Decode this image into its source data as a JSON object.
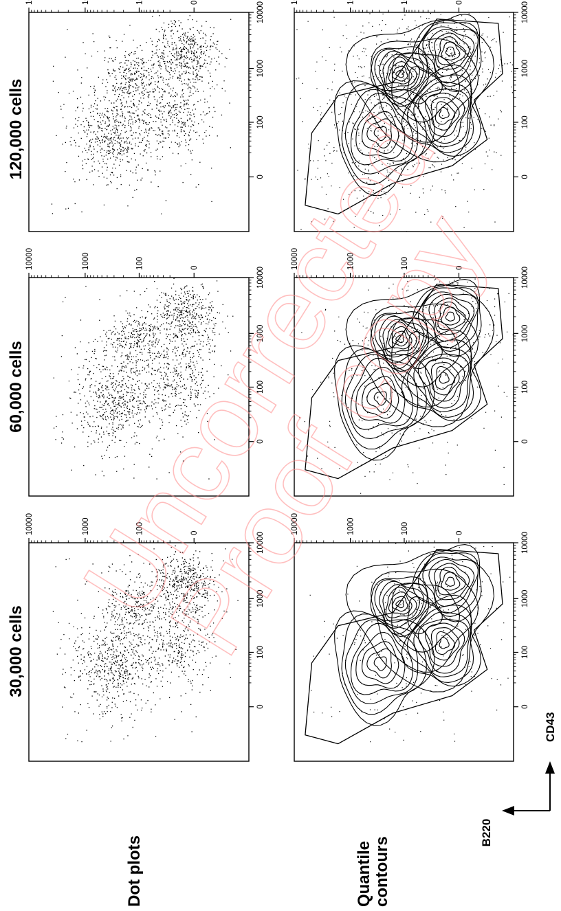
{
  "columns": [
    {
      "title": "30,000 cells",
      "cells": 30000
    },
    {
      "title": "60,000 cells",
      "cells": 60000
    },
    {
      "title": "120,000 cells",
      "cells": 120000
    }
  ],
  "rows": [
    {
      "label_lines": [
        "Dot plots"
      ],
      "kind": "dot"
    },
    {
      "label_lines": [
        "Quantile",
        "contours"
      ],
      "kind": "contour"
    }
  ],
  "axes": {
    "x_label": "CD43",
    "y_label": "B220",
    "tick_labels": [
      "0",
      "100",
      "1000",
      "10000"
    ]
  },
  "watermark": {
    "line1": "Uncorrected",
    "line2": "Proof copy"
  },
  "chart_data": {
    "type": "scatter",
    "scale": "logicle",
    "x_axis": "CD43",
    "y_axis": "B220",
    "xlim": [
      -100,
      10000
    ],
    "ylim": [
      -100,
      10000
    ],
    "ticks": [
      0,
      100,
      1000,
      10000
    ],
    "populations": [
      {
        "cd43": 60,
        "b220": 280,
        "rel_weight": 1.0
      },
      {
        "cd43": 800,
        "b220": 120,
        "rel_weight": 0.35
      },
      {
        "cd43": 2000,
        "b220": 5,
        "rel_weight": 0.7
      },
      {
        "cd43": 150,
        "b220": 10,
        "rel_weight": 0.45
      },
      {
        "cd43": 500,
        "b220": 40,
        "rel_weight": 0.3
      }
    ],
    "panels": [
      {
        "row": "Dot plots",
        "column": "30,000 cells",
        "type": "scatter"
      },
      {
        "row": "Dot plots",
        "column": "60,000 cells",
        "type": "scatter"
      },
      {
        "row": "Dot plots",
        "column": "120,000 cells",
        "type": "scatter"
      },
      {
        "row": "Quantile contours",
        "column": "30,000 cells",
        "type": "contour"
      },
      {
        "row": "Quantile contours",
        "column": "60,000 cells",
        "type": "contour"
      },
      {
        "row": "Quantile contours",
        "column": "120,000 cells",
        "type": "contour"
      }
    ]
  }
}
